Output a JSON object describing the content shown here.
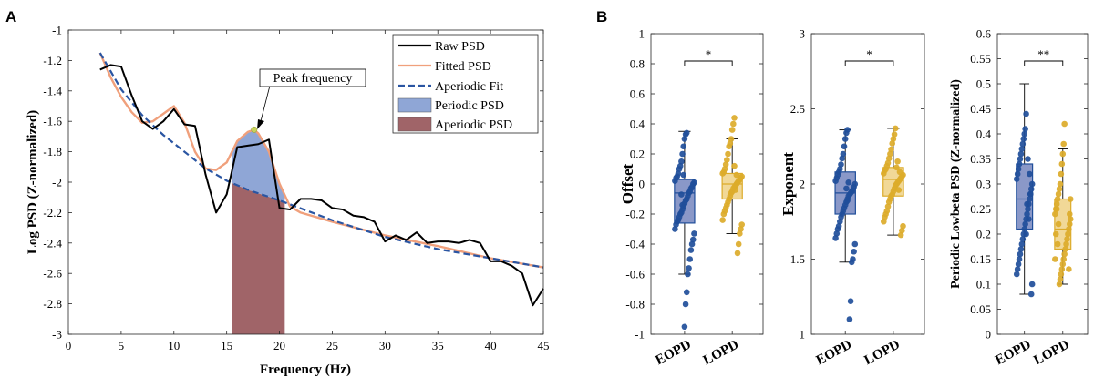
{
  "panel_a": {
    "letter": "A",
    "chart_data": {
      "type": "line",
      "xlabel": "Frequency (Hz)",
      "ylabel": "Log PSD (Z-normalized)",
      "xlim": [
        0,
        45
      ],
      "ylim": [
        -3,
        -1
      ],
      "xticks": [
        0,
        5,
        10,
        15,
        20,
        25,
        30,
        35,
        40,
        45
      ],
      "yticks": [
        -3,
        -2.8,
        -2.6,
        -2.4,
        -2.2,
        -2,
        -1.8,
        -1.6,
        -1.4,
        -1.2,
        -1
      ],
      "legend": {
        "position": "top-right",
        "entries": [
          "Raw PSD",
          "Fitted PSD",
          "Aperiodic Fit",
          "Periodic PSD",
          "Aperiodic PSD"
        ]
      },
      "annotation": {
        "text": "Peak frequency",
        "x": 17.6,
        "y": -1.655
      },
      "band": [
        15.5,
        20.5
      ],
      "colors": {
        "raw": "#000000",
        "fitted": "#f0a07c",
        "aperiodic_fit": "#2a55a2",
        "periodic_fill": "#8fa6d6",
        "aperiodic_fill": "#a06468"
      },
      "series": [
        {
          "name": "Raw PSD",
          "x": [
            3,
            4,
            5,
            6,
            7,
            8,
            9,
            10,
            11,
            12,
            13,
            14,
            15,
            16,
            17,
            18,
            19,
            20,
            21,
            22,
            23,
            24,
            25,
            26,
            27,
            28,
            29,
            30,
            31,
            32,
            33,
            34,
            35,
            36,
            37,
            38,
            39,
            40,
            41,
            42,
            43,
            44,
            45
          ],
          "y": [
            -1.26,
            -1.23,
            -1.24,
            -1.43,
            -1.6,
            -1.65,
            -1.6,
            -1.52,
            -1.62,
            -1.63,
            -1.95,
            -2.2,
            -2.08,
            -1.77,
            -1.76,
            -1.75,
            -1.72,
            -2.17,
            -2.18,
            -2.11,
            -2.11,
            -2.12,
            -2.17,
            -2.18,
            -2.22,
            -2.23,
            -2.26,
            -2.39,
            -2.35,
            -2.38,
            -2.33,
            -2.4,
            -2.39,
            -2.39,
            -2.4,
            -2.38,
            -2.4,
            -2.52,
            -2.52,
            -2.55,
            -2.6,
            -2.81,
            -2.7
          ]
        },
        {
          "name": "Fitted PSD",
          "x": [
            3,
            4,
            5,
            6,
            7,
            8,
            9,
            10,
            11,
            12,
            13,
            14,
            15,
            16,
            17,
            17.6,
            18,
            19,
            20,
            21,
            22,
            25,
            30,
            35,
            40,
            45
          ],
          "y": [
            -1.15,
            -1.31,
            -1.44,
            -1.54,
            -1.61,
            -1.6,
            -1.55,
            -1.5,
            -1.61,
            -1.8,
            -1.91,
            -1.92,
            -1.87,
            -1.73,
            -1.67,
            -1.655,
            -1.68,
            -1.8,
            -2.01,
            -2.16,
            -2.2,
            -2.26,
            -2.35,
            -2.42,
            -2.5,
            -2.56
          ]
        },
        {
          "name": "Aperiodic Fit",
          "x": [
            3,
            5,
            7,
            9,
            11,
            13,
            15,
            17,
            20,
            25,
            30,
            35,
            40,
            45
          ],
          "y": [
            -1.15,
            -1.39,
            -1.56,
            -1.69,
            -1.8,
            -1.91,
            -1.99,
            -2.05,
            -2.12,
            -2.25,
            -2.36,
            -2.44,
            -2.5,
            -2.56
          ]
        }
      ]
    }
  },
  "panel_b": {
    "letter": "B",
    "xtick_labels": [
      "EOPD",
      "LOPD"
    ],
    "colors": {
      "eopd": "#1f4e9a",
      "lopd": "#dcab2a"
    },
    "chart_data": [
      {
        "type": "box",
        "ylabel": "Offset",
        "ylim": [
          -1,
          1
        ],
        "yticks": [
          -1,
          -0.8,
          -0.6,
          -0.4,
          -0.2,
          0,
          0.2,
          0.4,
          0.6,
          0.8,
          1
        ],
        "significance": "*",
        "groups": [
          {
            "name": "EOPD",
            "q1": -0.26,
            "median": -0.06,
            "q3": 0.03,
            "whisker_low": -0.6,
            "whisker_high": 0.35,
            "points": [
              0.34,
              0.33,
              0.3,
              0.25,
              0.2,
              0.15,
              0.12,
              0.1,
              0.07,
              0.05,
              0.04,
              0.02,
              0.01,
              0.0,
              -0.02,
              -0.03,
              -0.05,
              -0.06,
              -0.08,
              -0.1,
              -0.11,
              -0.13,
              -0.15,
              -0.17,
              -0.19,
              -0.2,
              -0.22,
              -0.24,
              -0.25,
              -0.27,
              -0.3,
              -0.33,
              -0.37,
              -0.4,
              -0.44,
              -0.5,
              -0.56,
              -0.6,
              -0.72,
              -0.8,
              -0.95,
              0.06,
              -0.14,
              -0.07
            ]
          },
          {
            "name": "LOPD",
            "q1": -0.1,
            "median": 0.0,
            "q3": 0.07,
            "whisker_low": -0.33,
            "whisker_high": 0.3,
            "points": [
              0.44,
              0.4,
              0.36,
              0.3,
              0.27,
              0.25,
              0.2,
              0.16,
              0.13,
              0.1,
              0.08,
              0.07,
              0.05,
              0.04,
              0.03,
              0.02,
              0.01,
              0.0,
              -0.01,
              -0.02,
              -0.03,
              -0.05,
              -0.06,
              -0.08,
              -0.1,
              -0.12,
              -0.14,
              -0.16,
              -0.18,
              -0.2,
              -0.24,
              -0.27,
              -0.3,
              -0.33,
              -0.4,
              -0.46,
              0.06,
              -0.04,
              0.12
            ]
          }
        ]
      },
      {
        "type": "box",
        "ylabel": "Exponent",
        "ylim": [
          1,
          3
        ],
        "yticks": [
          1,
          1.5,
          2,
          2.5,
          3
        ],
        "significance": "*",
        "groups": [
          {
            "name": "EOPD",
            "q1": 1.8,
            "median": 1.94,
            "q3": 2.08,
            "whisker_low": 1.48,
            "whisker_high": 2.36,
            "points": [
              2.36,
              2.34,
              2.3,
              2.25,
              2.2,
              2.17,
              2.13,
              2.1,
              2.08,
              2.06,
              2.04,
              2.02,
              2.0,
              1.98,
              1.96,
              1.95,
              1.94,
              1.93,
              1.92,
              1.9,
              1.88,
              1.86,
              1.84,
              1.82,
              1.8,
              1.78,
              1.75,
              1.72,
              1.7,
              1.67,
              1.64,
              1.6,
              1.55,
              1.5,
              1.48,
              1.22,
              1.1,
              2.01,
              1.89,
              1.97
            ]
          },
          {
            "name": "LOPD",
            "q1": 1.92,
            "median": 2.03,
            "q3": 2.11,
            "whisker_low": 1.66,
            "whisker_high": 2.37,
            "points": [
              2.37,
              2.33,
              2.3,
              2.27,
              2.23,
              2.2,
              2.17,
              2.14,
              2.12,
              2.1,
              2.09,
              2.07,
              2.06,
              2.05,
              2.04,
              2.03,
              2.02,
              2.01,
              2.0,
              1.99,
              1.97,
              1.95,
              1.93,
              1.92,
              1.9,
              1.88,
              1.85,
              1.82,
              1.8,
              1.78,
              1.75,
              1.72,
              1.69,
              1.66,
              2.08,
              1.96,
              2.15,
              2.11
            ]
          }
        ]
      },
      {
        "type": "box",
        "ylabel": "Periodic Lowbeta PSD (Z-normalized)",
        "ylim": [
          0,
          0.6
        ],
        "yticks": [
          0,
          0.05,
          0.1,
          0.15,
          0.2,
          0.25,
          0.3,
          0.35,
          0.4,
          0.45,
          0.5,
          0.55,
          0.6
        ],
        "significance": "**",
        "groups": [
          {
            "name": "EOPD",
            "q1": 0.21,
            "median": 0.27,
            "q3": 0.34,
            "whisker_low": 0.08,
            "whisker_high": 0.5,
            "points": [
              0.44,
              0.41,
              0.4,
              0.39,
              0.38,
              0.37,
              0.36,
              0.35,
              0.34,
              0.33,
              0.32,
              0.31,
              0.3,
              0.29,
              0.28,
              0.27,
              0.26,
              0.25,
              0.24,
              0.23,
              0.22,
              0.21,
              0.2,
              0.19,
              0.18,
              0.17,
              0.16,
              0.15,
              0.14,
              0.13,
              0.12,
              0.1,
              0.08,
              0.28,
              0.32,
              0.23,
              0.35,
              0.26,
              0.2
            ]
          },
          {
            "name": "LOPD",
            "q1": 0.17,
            "median": 0.21,
            "q3": 0.27,
            "whisker_low": 0.1,
            "whisker_high": 0.37,
            "points": [
              0.42,
              0.38,
              0.36,
              0.34,
              0.32,
              0.3,
              0.29,
              0.28,
              0.27,
              0.26,
              0.25,
              0.24,
              0.23,
              0.22,
              0.21,
              0.2,
              0.19,
              0.18,
              0.17,
              0.16,
              0.15,
              0.14,
              0.13,
              0.12,
              0.11,
              0.1,
              0.22,
              0.18,
              0.25,
              0.2,
              0.15,
              0.27,
              0.24,
              0.13
            ]
          }
        ]
      }
    ]
  }
}
